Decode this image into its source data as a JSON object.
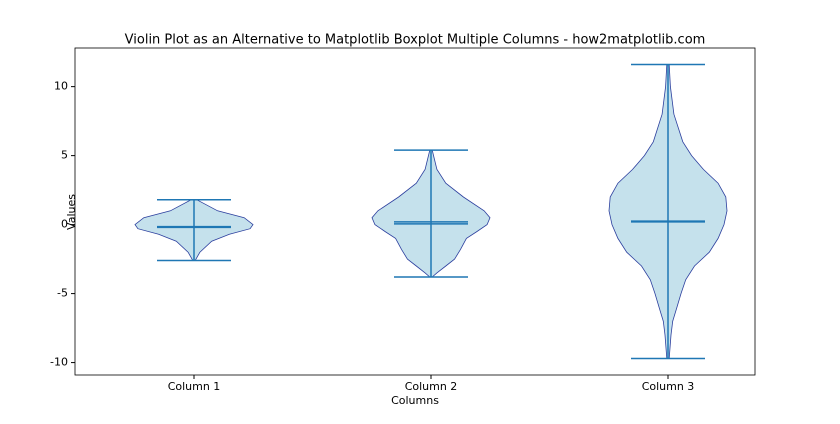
{
  "chart_data": {
    "type": "violin",
    "title": "Violin Plot as an Alternative to Matplotlib Boxplot Multiple Columns - how2matplotlib.com",
    "xlabel": "Columns",
    "ylabel": "Values",
    "categories": [
      "Column 1",
      "Column 2",
      "Column 3"
    ],
    "fill_color": "#c5e1ec",
    "edge_color": "#2c3f9e",
    "line_color": "#1f77b4",
    "ylim": [
      -10.9,
      12.8
    ],
    "yticks": [
      -10,
      -5,
      0,
      5,
      10
    ],
    "violins": [
      {
        "min": -2.6,
        "max": 1.8,
        "mean": -0.15,
        "median": -0.2,
        "profile": {
          "y": [
            1.8,
            1,
            0.5,
            0,
            -0.3,
            -0.7,
            -1.2,
            -2,
            -2.6
          ],
          "width": [
            0.05,
            0.4,
            0.85,
            1,
            0.95,
            0.6,
            0.3,
            0.1,
            0.02
          ]
        }
      },
      {
        "min": -3.8,
        "max": 5.4,
        "mean": 0.2,
        "median": 0.05,
        "profile": {
          "y": [
            5.4,
            4,
            3,
            2,
            1,
            0.5,
            0,
            -0.5,
            -1,
            -1.8,
            -2.5,
            -3,
            -3.5,
            -3.8
          ],
          "width": [
            0.02,
            0.1,
            0.25,
            0.55,
            0.9,
            1,
            0.95,
            0.78,
            0.6,
            0.5,
            0.4,
            0.25,
            0.1,
            0.02
          ]
        }
      },
      {
        "min": -9.7,
        "max": 11.6,
        "mean": 0.25,
        "median": 0.2,
        "profile": {
          "y": [
            11.6,
            10,
            8,
            6,
            5,
            4,
            3,
            2,
            1,
            0,
            -1,
            -2,
            -3,
            -4,
            -5,
            -6,
            -7,
            -8,
            -9.7
          ],
          "width": [
            0.02,
            0.04,
            0.1,
            0.25,
            0.4,
            0.6,
            0.85,
            0.98,
            1,
            0.95,
            0.85,
            0.7,
            0.45,
            0.3,
            0.22,
            0.15,
            0.08,
            0.05,
            0.02
          ]
        }
      }
    ]
  }
}
